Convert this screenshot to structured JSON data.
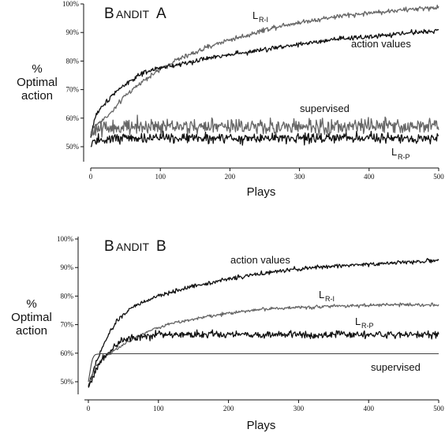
{
  "chart_data": [
    {
      "type": "line",
      "title": "Bandit A",
      "title_first": "B",
      "title_rest": "ANDIT",
      "title_letter": "A",
      "xlabel": "Plays",
      "ylabel": [
        "%",
        "Optimal",
        "action"
      ],
      "xlim": [
        0,
        500
      ],
      "ylim": [
        0.48,
        1.0
      ],
      "xticks": [
        0,
        100,
        200,
        300,
        400,
        500
      ],
      "xtick_labels": [
        "0",
        "100",
        "200",
        "300",
        "400",
        "500"
      ],
      "yticks": [
        0.5,
        0.6,
        0.7,
        0.8,
        0.9,
        1.0
      ],
      "ytick_labels": [
        "50%",
        "60%",
        "70%",
        "80%",
        "90%",
        "100%"
      ],
      "grid": false,
      "series": [
        {
          "label_main": "L",
          "label_sub": "R-I",
          "color": "#666666",
          "noise": 0.006,
          "x": [
            0,
            2,
            5,
            10,
            20,
            30,
            40,
            50,
            60,
            70,
            80,
            90,
            100,
            120,
            140,
            160,
            180,
            200,
            225,
            250,
            275,
            300,
            325,
            350,
            375,
            400,
            425,
            450,
            475,
            500
          ],
          "values": [
            0.55,
            0.56,
            0.57,
            0.58,
            0.6,
            0.62,
            0.65,
            0.68,
            0.7,
            0.72,
            0.74,
            0.755,
            0.77,
            0.8,
            0.82,
            0.84,
            0.86,
            0.875,
            0.89,
            0.91,
            0.925,
            0.935,
            0.945,
            0.955,
            0.962,
            0.968,
            0.974,
            0.979,
            0.984,
            0.988
          ]
        },
        {
          "label_main": "action values",
          "label_sub": "",
          "color": "#111111",
          "noise": 0.006,
          "x": [
            0,
            3,
            6,
            10,
            20,
            30,
            40,
            50,
            60,
            70,
            80,
            90,
            100,
            120,
            140,
            160,
            180,
            200,
            225,
            250,
            275,
            300,
            325,
            350,
            375,
            400,
            425,
            450,
            475,
            500
          ],
          "values": [
            0.53,
            0.57,
            0.6,
            0.62,
            0.65,
            0.68,
            0.7,
            0.72,
            0.735,
            0.75,
            0.76,
            0.77,
            0.775,
            0.785,
            0.795,
            0.805,
            0.815,
            0.825,
            0.83,
            0.84,
            0.85,
            0.86,
            0.865,
            0.875,
            0.88,
            0.885,
            0.89,
            0.897,
            0.902,
            0.907
          ]
        },
        {
          "label_main": "supervised",
          "label_sub": "",
          "color": "#666666",
          "noise": 0.02,
          "x": [
            0,
            5,
            20,
            500
          ],
          "values": [
            0.53,
            0.56,
            0.57,
            0.57
          ]
        },
        {
          "label_main": "L",
          "label_sub": "R-P",
          "color": "#111111",
          "noise": 0.013,
          "x": [
            0,
            5,
            20,
            500
          ],
          "values": [
            0.49,
            0.52,
            0.53,
            0.53
          ]
        }
      ]
    },
    {
      "type": "line",
      "title": "Bandit B",
      "title_first": "B",
      "title_rest": "ANDIT",
      "title_letter": "B",
      "xlabel": "Plays",
      "ylabel": [
        "%",
        "Optimal",
        "action"
      ],
      "xlim": [
        0,
        500
      ],
      "ylim": [
        0.47,
        1.0
      ],
      "xticks": [
        0,
        100,
        200,
        300,
        400,
        500
      ],
      "xtick_labels": [
        "0",
        "100",
        "200",
        "300",
        "400",
        "500"
      ],
      "yticks": [
        0.5,
        0.6,
        0.7,
        0.8,
        0.9,
        1.0
      ],
      "ytick_labels": [
        "50%",
        "60%",
        "70%",
        "80%",
        "90%",
        "100%"
      ],
      "grid": false,
      "series": [
        {
          "label_main": "action values",
          "label_sub": "",
          "color": "#111111",
          "noise": 0.005,
          "x": [
            0,
            5,
            10,
            20,
            30,
            40,
            50,
            60,
            70,
            80,
            100,
            120,
            150,
            200,
            250,
            300,
            350,
            400,
            450,
            500
          ],
          "values": [
            0.48,
            0.52,
            0.56,
            0.62,
            0.67,
            0.71,
            0.735,
            0.755,
            0.77,
            0.78,
            0.8,
            0.815,
            0.835,
            0.86,
            0.88,
            0.895,
            0.905,
            0.912,
            0.918,
            0.925
          ]
        },
        {
          "label_main": "L",
          "label_sub": "R-I",
          "color": "#666666",
          "noise": 0.004,
          "x": [
            0,
            5,
            10,
            20,
            30,
            40,
            50,
            60,
            80,
            100,
            120,
            150,
            200,
            250,
            300,
            350,
            400,
            450,
            500
          ],
          "values": [
            0.49,
            0.52,
            0.55,
            0.58,
            0.6,
            0.615,
            0.63,
            0.645,
            0.67,
            0.69,
            0.705,
            0.72,
            0.74,
            0.755,
            0.76,
            0.765,
            0.768,
            0.77,
            0.77
          ]
        },
        {
          "label_main": "L",
          "label_sub": "R-P",
          "color": "#111111",
          "noise": 0.009,
          "x": [
            0,
            5,
            10,
            20,
            30,
            40,
            50,
            60,
            80,
            100,
            150,
            200,
            300,
            400,
            500
          ],
          "values": [
            0.48,
            0.51,
            0.54,
            0.58,
            0.61,
            0.63,
            0.645,
            0.655,
            0.66,
            0.665,
            0.665,
            0.665,
            0.665,
            0.665,
            0.665
          ]
        },
        {
          "label_main": "supervised",
          "label_sub": "",
          "color": "#444444",
          "noise": 0,
          "x": [
            0,
            2,
            4,
            6,
            8,
            10,
            14,
            18,
            22,
            30,
            500
          ],
          "values": [
            0.5,
            0.53,
            0.56,
            0.58,
            0.59,
            0.595,
            0.597,
            0.598,
            0.598,
            0.598,
            0.598
          ]
        }
      ]
    }
  ]
}
